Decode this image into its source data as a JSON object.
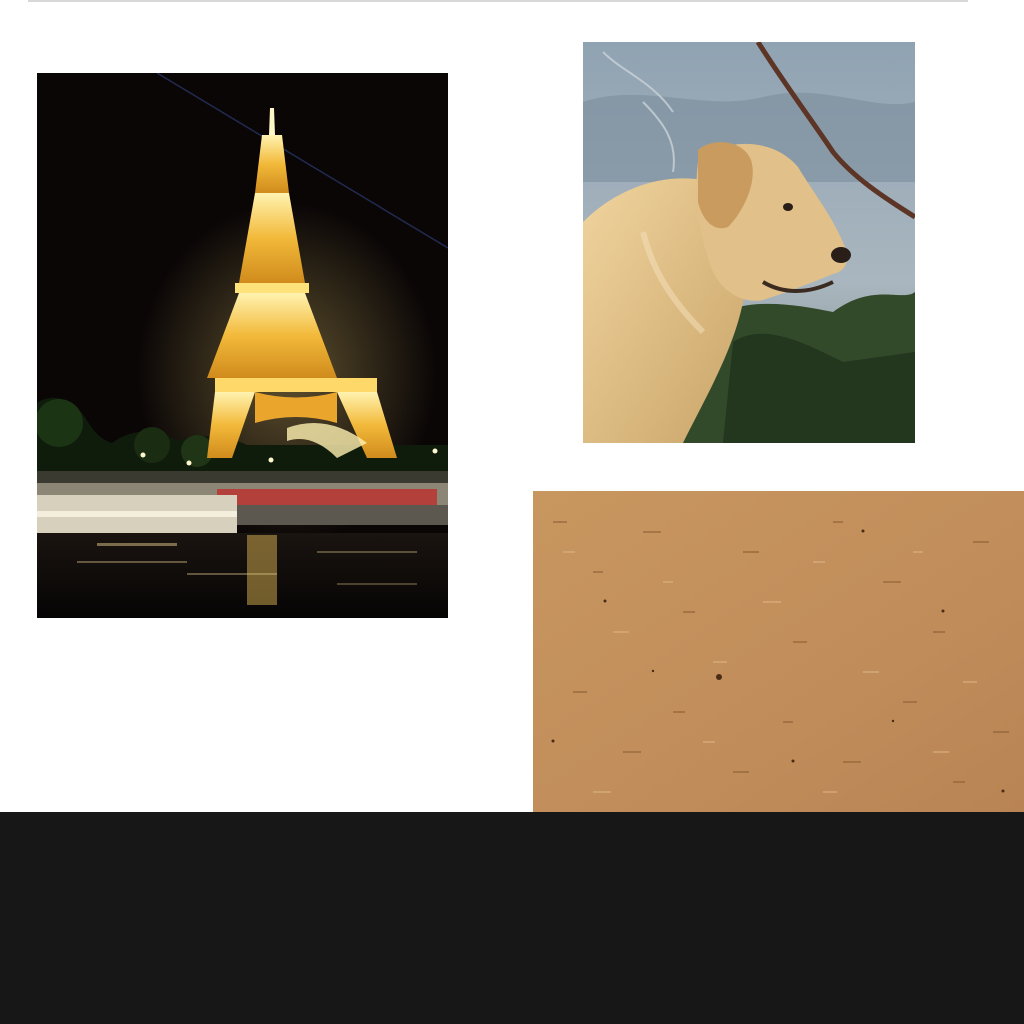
{
  "canvas": {
    "background": "#ffffff",
    "bottom_bar_color": "#171717"
  },
  "photos": [
    {
      "id": "eiffel",
      "subject": "eiffel-tower-night"
    },
    {
      "id": "dog",
      "subject": "golden-retriever-profile"
    },
    {
      "id": "cork",
      "subject": "cork-board-texture"
    }
  ],
  "colors": {
    "tower_gold": "#f2b93a",
    "night_sky": "#0a0606",
    "cork": "#c28f5c",
    "dog_fur": "#e2c08a"
  }
}
